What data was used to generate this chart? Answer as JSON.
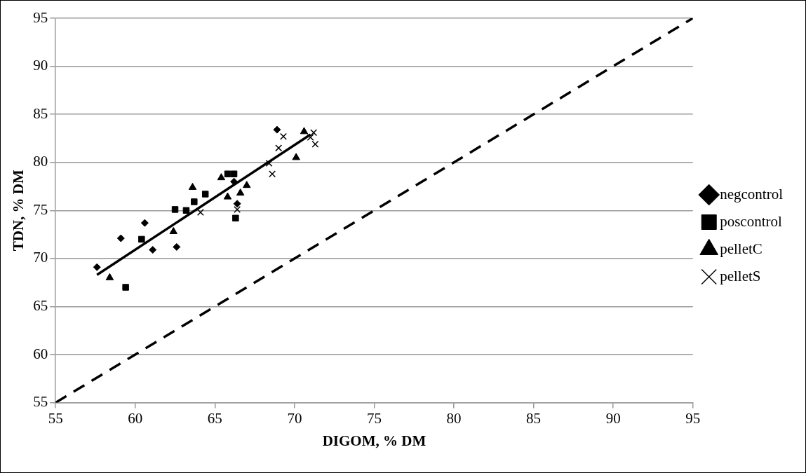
{
  "chart_data": {
    "type": "scatter",
    "xlabel": "DIGOM, % DM",
    "ylabel": "TDN, % DM",
    "xlim": [
      55,
      95
    ],
    "ylim": [
      55,
      95
    ],
    "xticks": [
      55,
      60,
      65,
      70,
      75,
      80,
      85,
      90,
      95
    ],
    "yticks": [
      55,
      60,
      65,
      70,
      75,
      80,
      85,
      90,
      95
    ],
    "grid": "y",
    "legend": "right",
    "series": [
      {
        "name": "negcontrol",
        "color": "#000000",
        "marker": "diamond",
        "x": [
          57.6,
          59.1,
          60.6,
          61.1,
          62.6,
          68.9,
          66.2,
          66.4
        ],
        "values": [
          69.1,
          72.1,
          73.7,
          70.9,
          71.2,
          83.4,
          78.0,
          75.7
        ]
      },
      {
        "name": "poscontrol",
        "color": "#000000",
        "marker": "square",
        "x": [
          59.4,
          60.4,
          62.5,
          63.2,
          63.7,
          64.4,
          65.8,
          66.2,
          66.3
        ],
        "values": [
          67.0,
          72.0,
          75.1,
          75.0,
          75.9,
          76.7,
          78.8,
          78.8,
          74.2
        ]
      },
      {
        "name": "pelletC",
        "color": "#000000",
        "marker": "triangle",
        "x": [
          58.4,
          62.4,
          63.6,
          65.4,
          65.8,
          66.6,
          67.0,
          70.1,
          70.6
        ],
        "values": [
          68.0,
          72.8,
          77.4,
          78.4,
          76.4,
          76.8,
          77.6,
          80.5,
          83.2
        ]
      },
      {
        "name": "pelletS",
        "color": "#000000",
        "marker": "cross",
        "x": [
          64.1,
          66.4,
          68.4,
          68.6,
          69.0,
          69.3,
          71.0,
          71.2,
          71.3
        ],
        "values": [
          74.8,
          75.1,
          79.9,
          78.8,
          81.5,
          82.7,
          82.6,
          83.1,
          81.9
        ]
      },
      {
        "type": "line",
        "color": "#000000",
        "line_style": "solid",
        "marker": "none",
        "x": [
          57.6,
          71.0
        ],
        "values": [
          68.3,
          82.9
        ]
      },
      {
        "type": "line",
        "color": "#000000",
        "line_style": "dashed",
        "marker": "none",
        "x": [
          55,
          95
        ],
        "values": [
          55,
          95
        ]
      }
    ]
  }
}
